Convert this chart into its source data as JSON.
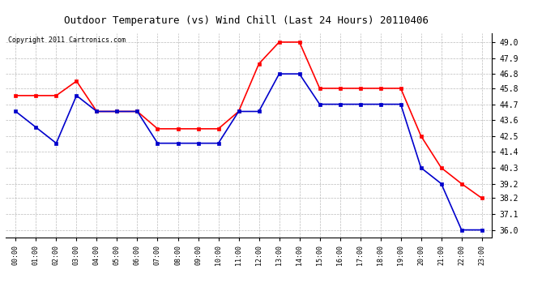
{
  "title": "Outdoor Temperature (vs) Wind Chill (Last 24 Hours) 20110406",
  "copyright": "Copyright 2011 Cartronics.com",
  "x_labels": [
    "00:00",
    "01:00",
    "02:00",
    "03:00",
    "04:00",
    "05:00",
    "06:00",
    "07:00",
    "08:00",
    "09:00",
    "10:00",
    "11:00",
    "12:00",
    "13:00",
    "14:00",
    "15:00",
    "16:00",
    "17:00",
    "18:00",
    "19:00",
    "20:00",
    "21:00",
    "22:00",
    "23:00"
  ],
  "temp_red": [
    45.3,
    45.3,
    45.3,
    46.3,
    44.2,
    44.2,
    44.2,
    43.0,
    43.0,
    43.0,
    43.0,
    44.2,
    47.5,
    49.0,
    49.0,
    45.8,
    45.8,
    45.8,
    45.8,
    45.8,
    42.5,
    40.3,
    39.2,
    38.2
  ],
  "wind_blue": [
    44.2,
    43.1,
    42.0,
    45.3,
    44.2,
    44.2,
    44.2,
    42.0,
    42.0,
    42.0,
    42.0,
    44.2,
    44.2,
    46.8,
    46.8,
    44.7,
    44.7,
    44.7,
    44.7,
    44.7,
    40.3,
    39.2,
    36.0,
    36.0
  ],
  "ylim_min": 35.5,
  "ylim_max": 49.6,
  "yticks": [
    36.0,
    37.1,
    38.2,
    39.2,
    40.3,
    41.4,
    42.5,
    43.6,
    44.7,
    45.8,
    46.8,
    47.9,
    49.0
  ],
  "red_color": "#ff0000",
  "blue_color": "#0000cc",
  "bg_color": "#ffffff",
  "grid_color": "#aaaaaa",
  "title_fontsize": 9,
  "copyright_fontsize": 6
}
